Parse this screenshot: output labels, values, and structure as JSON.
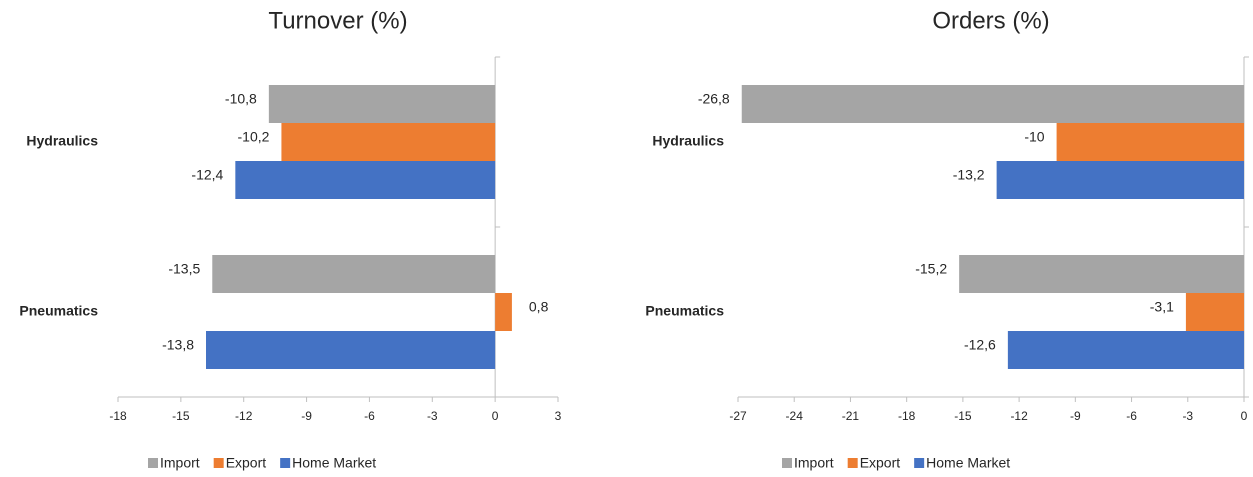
{
  "chart_data": [
    {
      "type": "bar",
      "orientation": "horizontal",
      "title": "Turnover (%)",
      "categories": [
        "Hydraulics",
        "Pneumatics"
      ],
      "series": [
        {
          "name": "Import",
          "color": "#a5a5a5",
          "values": [
            -10.8,
            -13.5
          ],
          "value_labels": [
            "-10,8",
            "-13,5"
          ]
        },
        {
          "name": "Export",
          "color": "#ed7d31",
          "values": [
            -10.2,
            0.8
          ],
          "value_labels": [
            "-10,2",
            "0,8"
          ]
        },
        {
          "name": "Home Market",
          "color": "#4472c4",
          "values": [
            -12.4,
            -13.8
          ],
          "value_labels": [
            "-12,4",
            "-13,8"
          ]
        }
      ],
      "xlim": [
        -18,
        3
      ],
      "xticks": [
        -18,
        -15,
        -12,
        -9,
        -6,
        -3,
        0,
        3
      ],
      "legend": "bottom"
    },
    {
      "type": "bar",
      "orientation": "horizontal",
      "title": "Orders (%)",
      "categories": [
        "Hydraulics",
        "Pneumatics"
      ],
      "series": [
        {
          "name": "Import",
          "color": "#a5a5a5",
          "values": [
            -26.8,
            -15.2
          ],
          "value_labels": [
            "-26,8",
            "-15,2"
          ]
        },
        {
          "name": "Export",
          "color": "#ed7d31",
          "values": [
            -10,
            -3.1
          ],
          "value_labels": [
            "-10",
            "-3,1"
          ]
        },
        {
          "name": "Home Market",
          "color": "#4472c4",
          "values": [
            -13.2,
            -12.6
          ],
          "value_labels": [
            "-13,2",
            "-12,6"
          ]
        }
      ],
      "xlim": [
        -27,
        0
      ],
      "xticks": [
        -27,
        -24,
        -21,
        -18,
        -15,
        -12,
        -9,
        -6,
        -3,
        0
      ],
      "legend": "bottom"
    }
  ]
}
